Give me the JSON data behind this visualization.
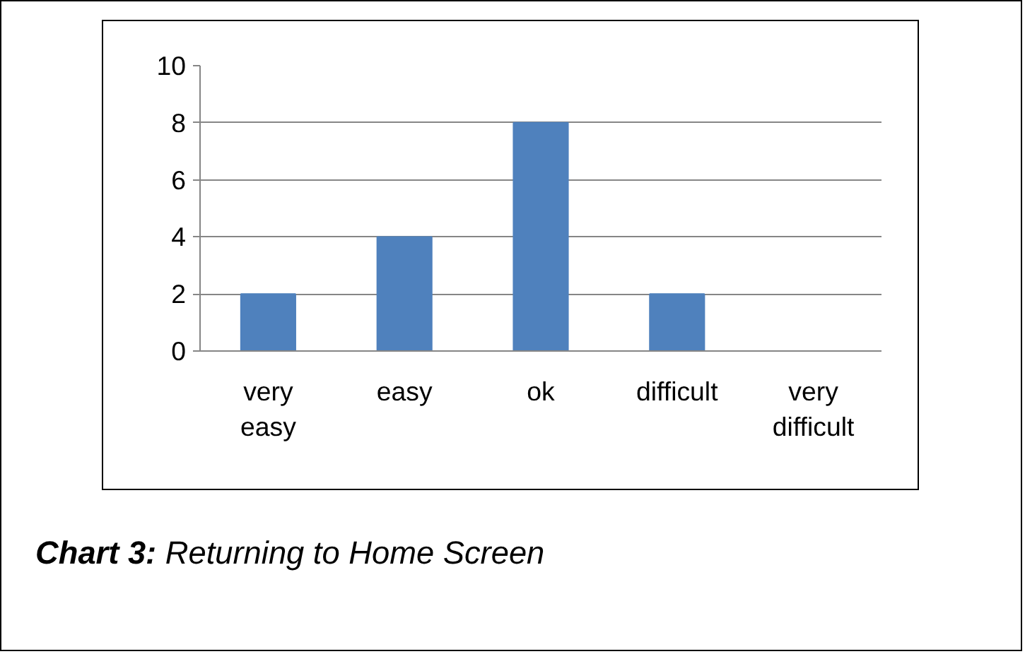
{
  "chart_data": {
    "type": "bar",
    "title": "Chart 3: Returning to Home Screen",
    "categories": [
      "very easy",
      "easy",
      "ok",
      "difficult",
      "very difficult"
    ],
    "values": [
      2,
      4,
      8,
      2,
      0
    ],
    "color": "#4f81bd",
    "ylim": [
      0,
      10
    ],
    "yticks": [
      0,
      2,
      4,
      6,
      8,
      10
    ],
    "grid": "y"
  }
}
